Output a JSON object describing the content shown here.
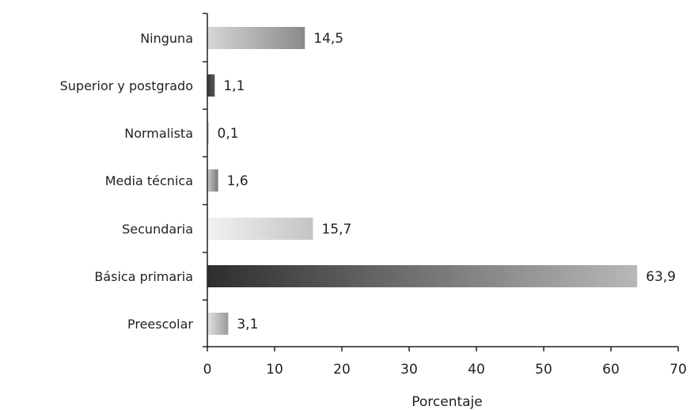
{
  "chart_data": {
    "type": "bar",
    "orientation": "horizontal",
    "categories": [
      "Ninguna",
      "Superior y postgrado",
      "Normalista",
      "Media técnica",
      "Secundaria",
      "Básica primaria",
      "Preescolar"
    ],
    "values": [
      14.5,
      1.1,
      0.1,
      1.6,
      15.7,
      63.9,
      3.1
    ],
    "value_labels": [
      "14,5",
      "1,1",
      "0,1",
      "1,6",
      "15,7",
      "63,9",
      "3,1"
    ],
    "title": "",
    "xlabel": "Porcentaje",
    "ylabel": "",
    "xlim": [
      0,
      70
    ],
    "xticks": [
      "0",
      "10",
      "20",
      "30",
      "40",
      "50",
      "60",
      "70"
    ],
    "grid": false,
    "legend": "none",
    "bar_gradient_colors": {
      "Ninguna": [
        "#d6d6d6",
        "#8a8a8a"
      ],
      "Superior y postgrado": [
        "#3a3a3a",
        "#555555"
      ],
      "Normalista": [
        "#aaaaaa",
        "#aaaaaa"
      ],
      "Media técnica": [
        "#c8c8c8",
        "#7a7a7a"
      ],
      "Secundaria": [
        "#f2f2f2",
        "#c4c4c4"
      ],
      "Básica primaria": [
        "#2e2e2e",
        "#b8b8b8"
      ],
      "Preescolar": [
        "#e2e2e2",
        "#9a9a9a"
      ]
    }
  }
}
